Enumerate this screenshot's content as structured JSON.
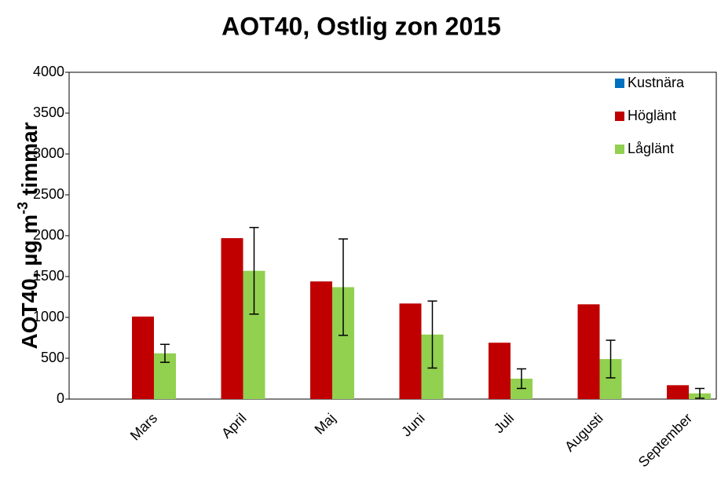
{
  "chart_data": {
    "type": "bar",
    "title": "AOT40, Ostlig zon 2015",
    "y_label_parts": [
      "AOT40, µg m",
      "-3",
      "timmar"
    ],
    "categories": [
      "Mars",
      "April",
      "Maj",
      "Juni",
      "Juli",
      "Augusti",
      "September"
    ],
    "series": [
      {
        "name": "Kustnära",
        "color": "#0070c0",
        "values": [
          null,
          null,
          null,
          null,
          null,
          null,
          null
        ]
      },
      {
        "name": "Höglänt",
        "color": "#c00000",
        "values": [
          1010,
          1970,
          1440,
          1170,
          690,
          1160,
          170
        ]
      },
      {
        "name": "Låglänt",
        "color": "#92d050",
        "values": [
          560,
          1570,
          1370,
          790,
          250,
          490,
          70
        ],
        "errors": [
          110,
          530,
          590,
          410,
          120,
          230,
          60
        ]
      }
    ],
    "ylim": [
      0,
      4000
    ],
    "yticks": [
      0,
      500,
      1000,
      1500,
      2000,
      2500,
      3000,
      3500,
      4000
    ],
    "legend": "upper right",
    "grid": false
  }
}
